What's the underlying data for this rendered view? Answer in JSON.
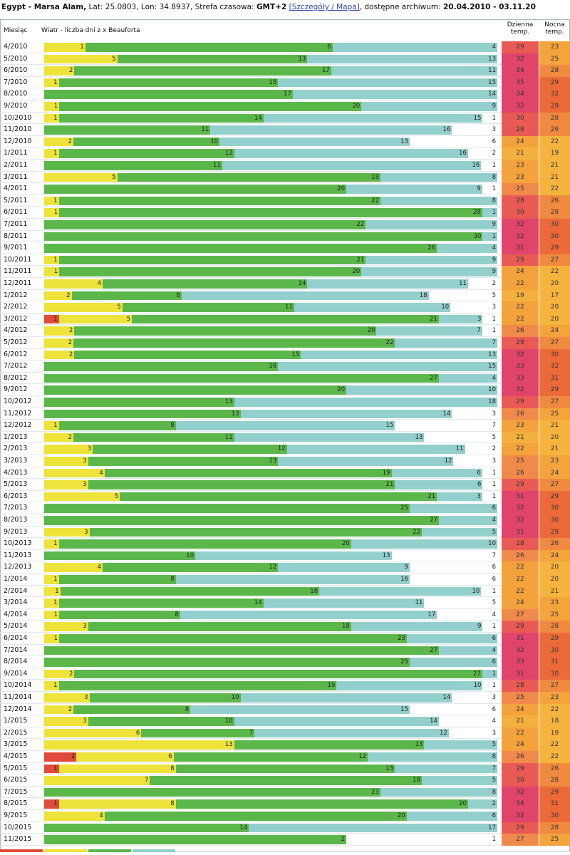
{
  "header": {
    "location": "Egypt - Marsa Alam,",
    "coords": "Lat: 25.0803, Lon: 34.8937, Strefa czasowa:",
    "tz": "GMT+2",
    "link": "[Szczegóły / Mapa]",
    "archive_label": ", dostępne archiwum:",
    "archive_range": "20.04.2010 - 03.11.20"
  },
  "columns": {
    "month": "Miesiąc",
    "wind": "Wiatr - liczba dni z x Beauforta",
    "day_temp": "Dzienna temp.",
    "night_temp": "Nocna temp."
  },
  "colors": {
    "red": "#e04a3a",
    "yellow": "#eee33a",
    "green": "#5bb74a",
    "teal": "#93cfcc",
    "white": "#ffffff"
  },
  "chart_data": {
    "type": "bar",
    "stacked": true,
    "segment_order": [
      "red",
      "yellow",
      "green",
      "teal",
      "white"
    ],
    "categories": [
      "4/2010",
      "5/2010",
      "6/2010",
      "7/2010",
      "8/2010",
      "9/2010",
      "10/2010",
      "11/2010",
      "12/2010",
      "1/2011",
      "2/2011",
      "3/2011",
      "4/2011",
      "5/2011",
      "6/2011",
      "7/2011",
      "8/2011",
      "9/2011",
      "10/2011",
      "11/2011",
      "12/2011",
      "1/2012",
      "2/2012",
      "3/2012",
      "4/2012",
      "5/2012",
      "6/2012",
      "7/2012",
      "8/2012",
      "9/2012",
      "10/2012",
      "11/2012",
      "12/2012",
      "1/2013",
      "2/2013",
      "3/2013",
      "4/2013",
      "5/2013",
      "6/2013",
      "7/2013",
      "8/2013",
      "9/2013",
      "10/2013",
      "11/2013",
      "12/2013",
      "1/2014",
      "2/2014",
      "3/2014",
      "4/2014",
      "5/2014",
      "6/2014",
      "7/2014",
      "8/2014",
      "9/2014",
      "10/2014",
      "11/2014",
      "12/2014",
      "1/2015",
      "2/2015",
      "3/2015",
      "4/2015",
      "5/2015",
      "6/2015",
      "7/2015",
      "8/2015",
      "9/2015",
      "10/2015",
      "11/2015"
    ],
    "rows": [
      {
        "segs": [
          0,
          1,
          6,
          4,
          0
        ],
        "day": 29,
        "night": 23
      },
      {
        "segs": [
          0,
          5,
          13,
          13,
          0
        ],
        "day": 32,
        "night": 25
      },
      {
        "segs": [
          0,
          2,
          17,
          11,
          0
        ],
        "day": 34,
        "night": 28
      },
      {
        "segs": [
          0,
          1,
          15,
          15,
          0
        ],
        "day": 35,
        "night": 29
      },
      {
        "segs": [
          0,
          0,
          17,
          14,
          0
        ],
        "day": 34,
        "night": 32
      },
      {
        "segs": [
          0,
          1,
          20,
          9,
          0
        ],
        "day": 32,
        "night": 29
      },
      {
        "segs": [
          0,
          1,
          14,
          15,
          1
        ],
        "day": 30,
        "night": 28
      },
      {
        "segs": [
          0,
          0,
          11,
          16,
          3
        ],
        "day": 28,
        "night": 26
      },
      {
        "segs": [
          0,
          2,
          10,
          13,
          6
        ],
        "day": 24,
        "night": 22
      },
      {
        "segs": [
          0,
          1,
          12,
          16,
          2
        ],
        "day": 21,
        "night": 19
      },
      {
        "segs": [
          0,
          0,
          11,
          16,
          1
        ],
        "day": 23,
        "night": 21
      },
      {
        "segs": [
          0,
          5,
          18,
          8,
          0
        ],
        "day": 23,
        "night": 21
      },
      {
        "segs": [
          0,
          0,
          20,
          9,
          1
        ],
        "day": 25,
        "night": 22
      },
      {
        "segs": [
          0,
          1,
          22,
          8,
          0
        ],
        "day": 28,
        "night": 26
      },
      {
        "segs": [
          0,
          1,
          28,
          1,
          0
        ],
        "day": 30,
        "night": 28
      },
      {
        "segs": [
          0,
          0,
          22,
          9,
          0
        ],
        "day": 32,
        "night": 30
      },
      {
        "segs": [
          0,
          0,
          30,
          1,
          0
        ],
        "day": 32,
        "night": 30
      },
      {
        "segs": [
          0,
          0,
          26,
          4,
          0
        ],
        "day": 31,
        "night": 29
      },
      {
        "segs": [
          0,
          1,
          21,
          9,
          0
        ],
        "day": 29,
        "night": 27
      },
      {
        "segs": [
          0,
          1,
          20,
          9,
          0
        ],
        "day": 24,
        "night": 22
      },
      {
        "segs": [
          0,
          4,
          14,
          11,
          2
        ],
        "day": 22,
        "night": 20
      },
      {
        "segs": [
          0,
          2,
          8,
          18,
          5
        ],
        "day": 19,
        "night": 17
      },
      {
        "segs": [
          0,
          5,
          11,
          10,
          3
        ],
        "day": 22,
        "night": 20
      },
      {
        "segs": [
          1,
          5,
          21,
          3,
          1
        ],
        "day": 22,
        "night": 20
      },
      {
        "segs": [
          0,
          2,
          20,
          7,
          1
        ],
        "day": 26,
        "night": 24
      },
      {
        "segs": [
          0,
          2,
          22,
          7,
          0
        ],
        "day": 29,
        "night": 27
      },
      {
        "segs": [
          0,
          2,
          15,
          13,
          0
        ],
        "day": 32,
        "night": 30
      },
      {
        "segs": [
          0,
          0,
          16,
          15,
          0
        ],
        "day": 33,
        "night": 32
      },
      {
        "segs": [
          0,
          0,
          27,
          4,
          0
        ],
        "day": 33,
        "night": 31
      },
      {
        "segs": [
          0,
          0,
          20,
          10,
          0
        ],
        "day": 32,
        "night": 29
      },
      {
        "segs": [
          0,
          0,
          13,
          18,
          0
        ],
        "day": 29,
        "night": 27
      },
      {
        "segs": [
          0,
          0,
          13,
          14,
          3
        ],
        "day": 26,
        "night": 25
      },
      {
        "segs": [
          0,
          1,
          8,
          15,
          7
        ],
        "day": 23,
        "night": 21
      },
      {
        "segs": [
          0,
          2,
          11,
          13,
          5
        ],
        "day": 21,
        "night": 20
      },
      {
        "segs": [
          0,
          3,
          12,
          11,
          2
        ],
        "day": 22,
        "night": 21
      },
      {
        "segs": [
          0,
          3,
          13,
          12,
          3
        ],
        "day": 25,
        "night": 23
      },
      {
        "segs": [
          0,
          4,
          19,
          6,
          1
        ],
        "day": 26,
        "night": 24
      },
      {
        "segs": [
          0,
          3,
          21,
          6,
          1
        ],
        "day": 29,
        "night": 27
      },
      {
        "segs": [
          0,
          5,
          21,
          3,
          1
        ],
        "day": 31,
        "night": 29
      },
      {
        "segs": [
          0,
          0,
          25,
          6,
          0
        ],
        "day": 32,
        "night": 30
      },
      {
        "segs": [
          0,
          0,
          27,
          4,
          0
        ],
        "day": 32,
        "night": 30
      },
      {
        "segs": [
          0,
          3,
          22,
          5,
          0
        ],
        "day": 31,
        "night": 29
      },
      {
        "segs": [
          0,
          1,
          20,
          10,
          0
        ],
        "day": 28,
        "night": 26
      },
      {
        "segs": [
          0,
          0,
          10,
          13,
          7
        ],
        "day": 26,
        "night": 24
      },
      {
        "segs": [
          0,
          4,
          12,
          9,
          6
        ],
        "day": 22,
        "night": 20
      },
      {
        "segs": [
          0,
          1,
          8,
          16,
          6
        ],
        "day": 22,
        "night": 20
      },
      {
        "segs": [
          0,
          1,
          16,
          10,
          1
        ],
        "day": 22,
        "night": 21
      },
      {
        "segs": [
          0,
          1,
          14,
          11,
          5
        ],
        "day": 24,
        "night": 23
      },
      {
        "segs": [
          0,
          1,
          8,
          17,
          4
        ],
        "day": 27,
        "night": 25
      },
      {
        "segs": [
          0,
          3,
          18,
          9,
          1
        ],
        "day": 29,
        "night": 28
      },
      {
        "segs": [
          0,
          1,
          23,
          6,
          0
        ],
        "day": 31,
        "night": 29
      },
      {
        "segs": [
          0,
          0,
          27,
          4,
          0
        ],
        "day": 32,
        "night": 30
      },
      {
        "segs": [
          0,
          0,
          25,
          6,
          0
        ],
        "day": 33,
        "night": 31
      },
      {
        "segs": [
          0,
          2,
          27,
          1,
          0
        ],
        "day": 31,
        "night": 30
      },
      {
        "segs": [
          0,
          1,
          19,
          10,
          1
        ],
        "day": 28,
        "night": 27
      },
      {
        "segs": [
          0,
          3,
          10,
          14,
          3
        ],
        "day": 25,
        "night": 23
      },
      {
        "segs": [
          0,
          2,
          8,
          15,
          6
        ],
        "day": 24,
        "night": 22
      },
      {
        "segs": [
          0,
          3,
          10,
          14,
          4
        ],
        "day": 21,
        "night": 18
      },
      {
        "segs": [
          0,
          6,
          7,
          12,
          3
        ],
        "day": 22,
        "night": 19
      },
      {
        "segs": [
          0,
          13,
          13,
          5,
          0
        ],
        "day": 24,
        "night": 22
      },
      {
        "segs": [
          2,
          6,
          12,
          8,
          0
        ],
        "day": 26,
        "night": 22
      },
      {
        "segs": [
          1,
          8,
          15,
          7,
          0
        ],
        "day": 29,
        "night": 26
      },
      {
        "segs": [
          0,
          7,
          18,
          5,
          0
        ],
        "day": 30,
        "night": 28
      },
      {
        "segs": [
          0,
          0,
          23,
          8,
          0
        ],
        "day": 32,
        "night": 29
      },
      {
        "segs": [
          1,
          8,
          20,
          2,
          0
        ],
        "day": 34,
        "night": 31
      },
      {
        "segs": [
          0,
          4,
          20,
          6,
          0
        ],
        "day": 32,
        "night": 30
      },
      {
        "segs": [
          0,
          0,
          14,
          17,
          0
        ],
        "day": 29,
        "night": 28
      },
      {
        "segs": [
          0,
          0,
          2,
          0,
          1
        ],
        "day": 27,
        "night": 25
      }
    ]
  }
}
